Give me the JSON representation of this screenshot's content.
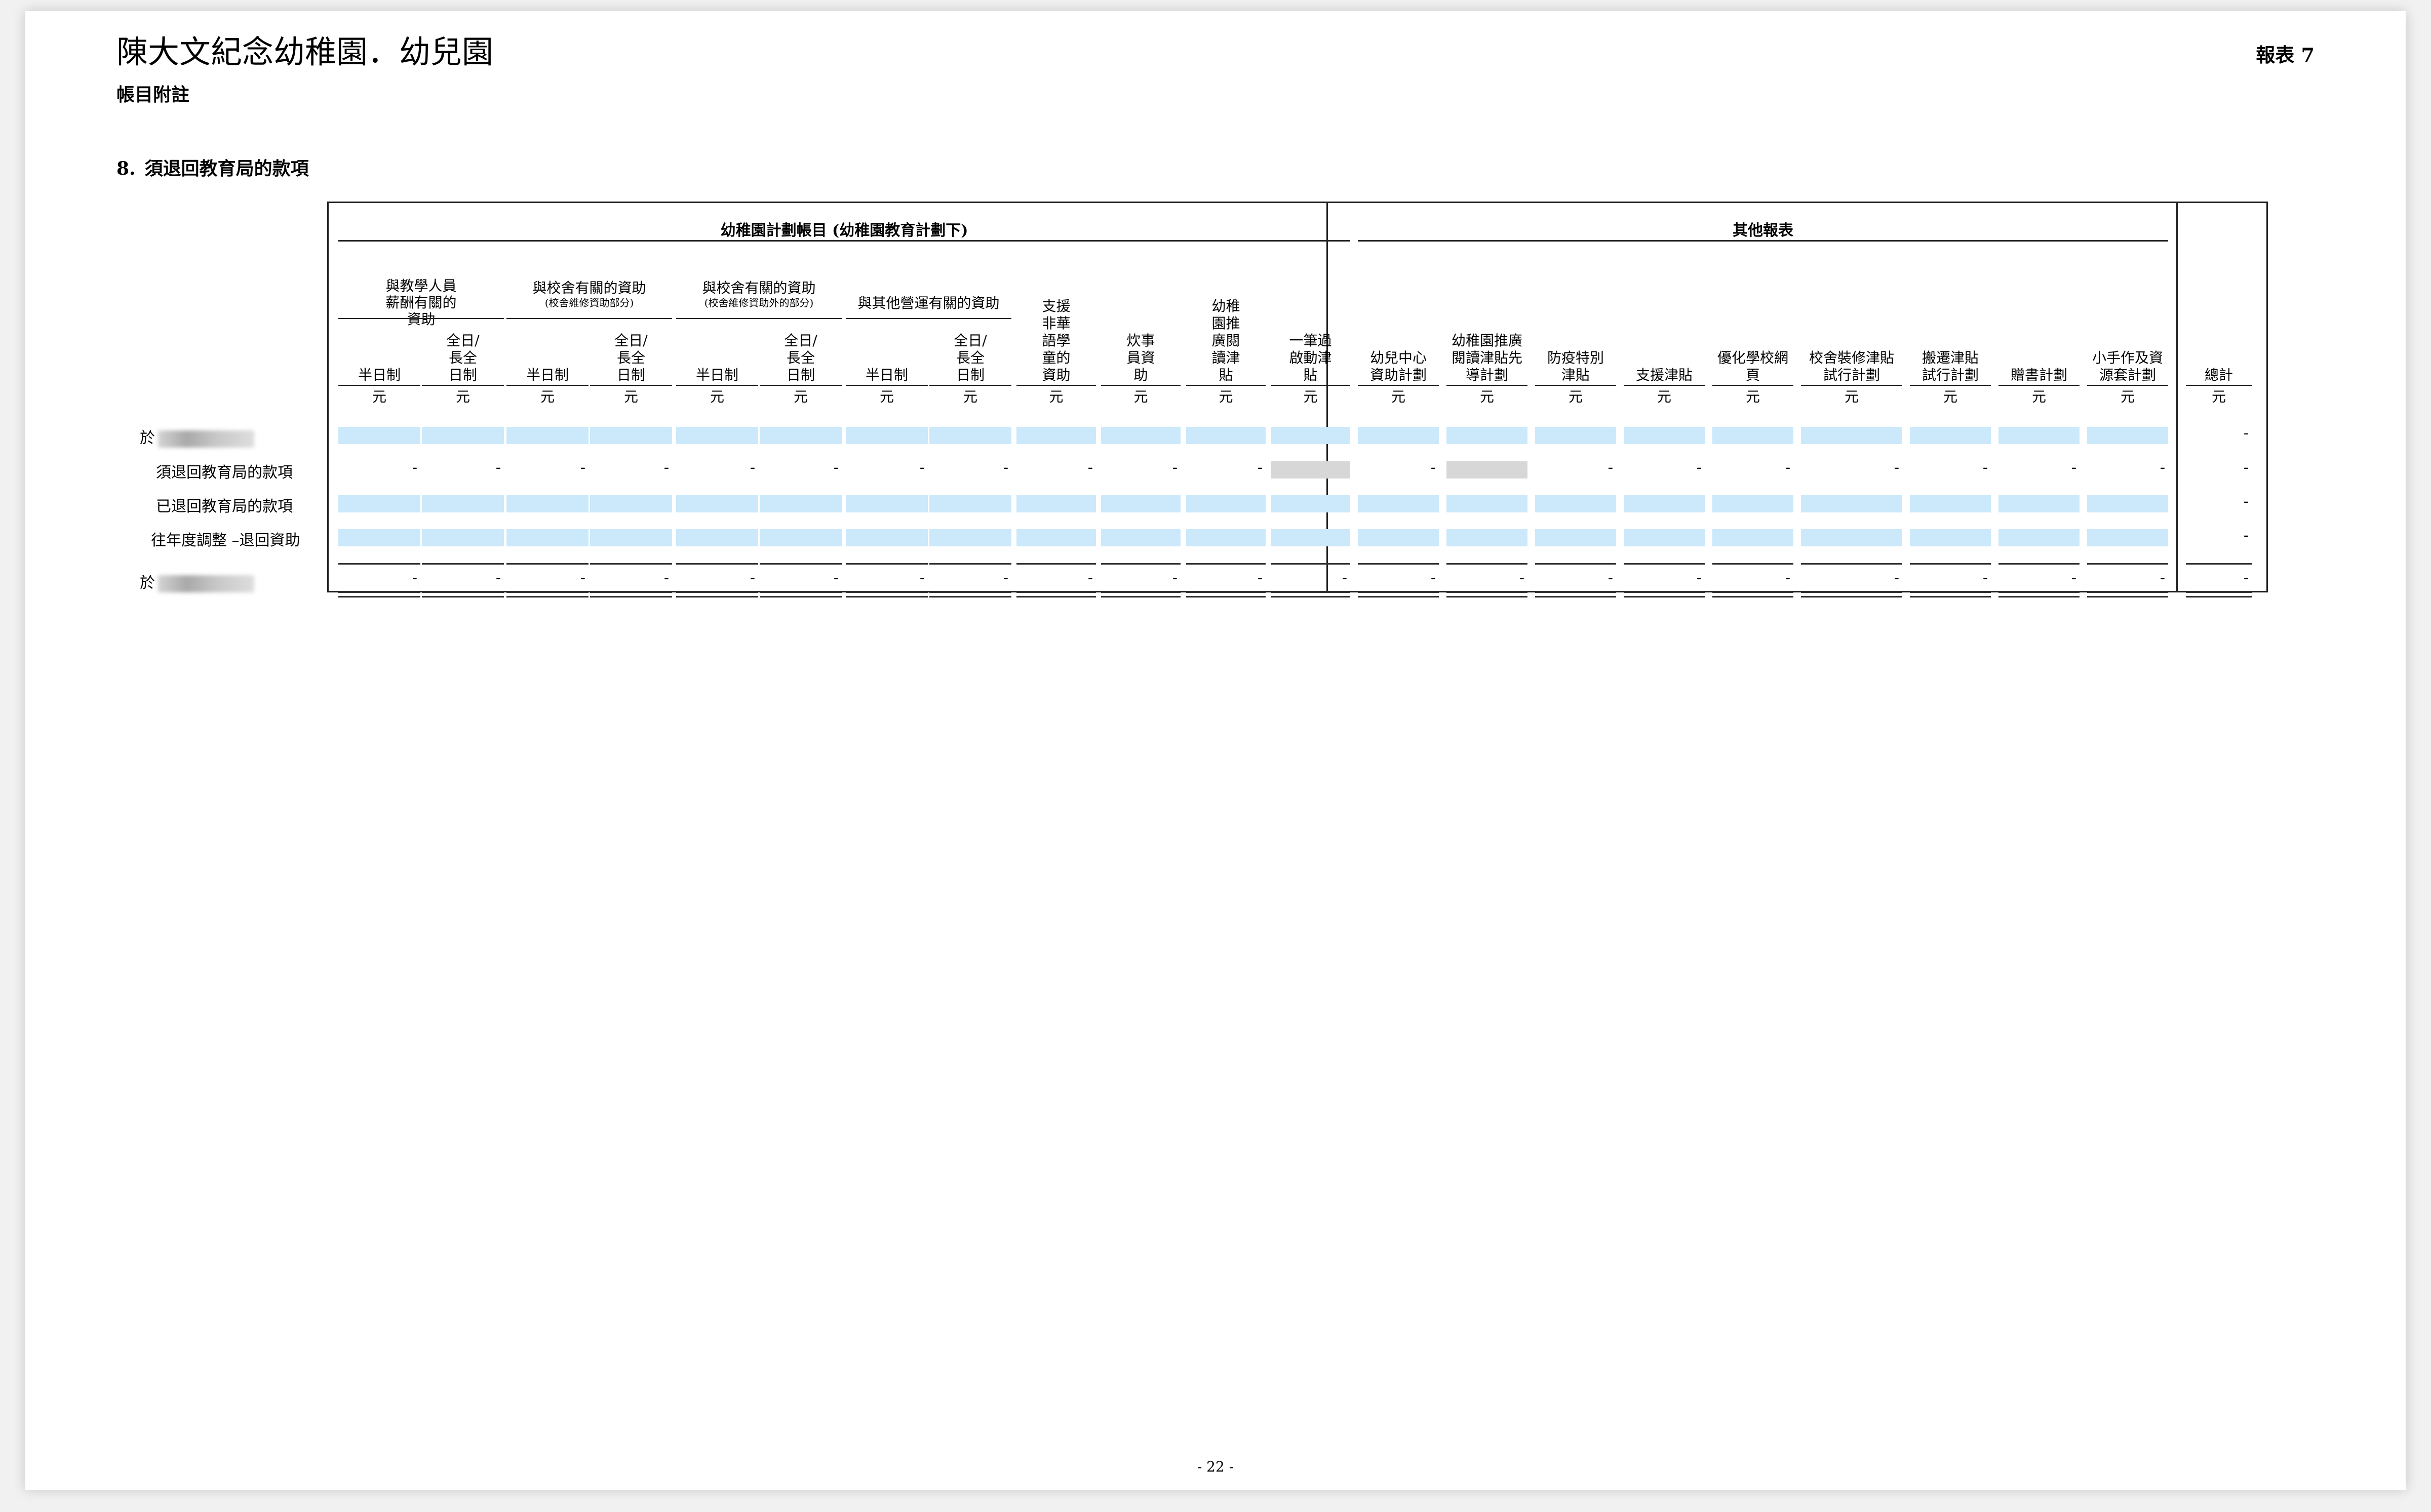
{
  "header": {
    "title": "陳大文紀念幼稚園．幼兒園",
    "subtitle": "帳目附註",
    "report_no": "報表 7"
  },
  "section": {
    "number": "8.",
    "title": "須退回教育局的款項"
  },
  "table": {
    "group_left": "幼稚園計劃帳目 (幼稚園教育計劃下)",
    "group_right": "其他報表",
    "subgroups": [
      {
        "title": "與教學人員薪酬有關的資助",
        "note": ""
      },
      {
        "title": "與校舍有關的資助",
        "note": "(校舍維修資助部分)"
      },
      {
        "title": "與校舍有關的資助",
        "note": "(校舍維修資助外的部分)"
      },
      {
        "title": "與其他營運有關的資助",
        "note": ""
      }
    ],
    "columns": [
      {
        "label": "半日制"
      },
      {
        "label": "全日/長全日制"
      },
      {
        "label": "半日制"
      },
      {
        "label": "全日/長全日制"
      },
      {
        "label": "半日制"
      },
      {
        "label": "全日/長全日制"
      },
      {
        "label": "半日制"
      },
      {
        "label": "全日/長全日制"
      },
      {
        "label": "支援非華語學童的資助"
      },
      {
        "label": "炊事員資助"
      },
      {
        "label": "幼稚園推廣閱讀津貼"
      },
      {
        "label": "一筆過啟動津貼"
      },
      {
        "label": "幼兒中心資助計劃"
      },
      {
        "label": "幼稚園推廣閱讀津貼先導計劃"
      },
      {
        "label": "防疫特別津貼"
      },
      {
        "label": "支援津貼"
      },
      {
        "label": "優化學校網頁"
      },
      {
        "label": "校舍裝修津貼試行計劃"
      },
      {
        "label": "搬遷津貼試行計劃"
      },
      {
        "label": "贈書計劃"
      },
      {
        "label": "小手作及資源套計劃"
      },
      {
        "label": "總計"
      }
    ],
    "currency": "元",
    "rows": [
      {
        "label": "於",
        "values": [
          "",
          "",
          "",
          "",
          "",
          "",
          "",
          "",
          "",
          "",
          "",
          "",
          "",
          "",
          "",
          "",
          "",
          "",
          "",
          "",
          "",
          "-"
        ]
      },
      {
        "label": "須退回教育局的款項",
        "values": [
          "-",
          "-",
          "-",
          "-",
          "-",
          "-",
          "-",
          "-",
          "-",
          "-",
          "-",
          "",
          "-",
          "",
          "-",
          "-",
          "-",
          "-",
          "-",
          "-",
          "-",
          "-"
        ]
      },
      {
        "label": "已退回教育局的款項",
        "values": [
          "",
          "",
          "",
          "",
          "",
          "",
          "",
          "",
          "",
          "",
          "",
          "",
          "",
          "",
          "",
          "",
          "",
          "",
          "",
          "",
          "",
          "-"
        ]
      },
      {
        "label": "往年度調整 –退回資助",
        "values": [
          "",
          "",
          "",
          "",
          "",
          "",
          "",
          "",
          "",
          "",
          "",
          "",
          "",
          "",
          "",
          "",
          "",
          "",
          "",
          "",
          "",
          "-"
        ]
      },
      {
        "label": "於",
        "values": [
          "-",
          "-",
          "-",
          "-",
          "-",
          "-",
          "-",
          "-",
          "-",
          "-",
          "-",
          "-",
          "-",
          "-",
          "-",
          "-",
          "-",
          "-",
          "-",
          "-",
          "-",
          "-"
        ]
      }
    ]
  },
  "footer": {
    "page": "- 22 -"
  }
}
